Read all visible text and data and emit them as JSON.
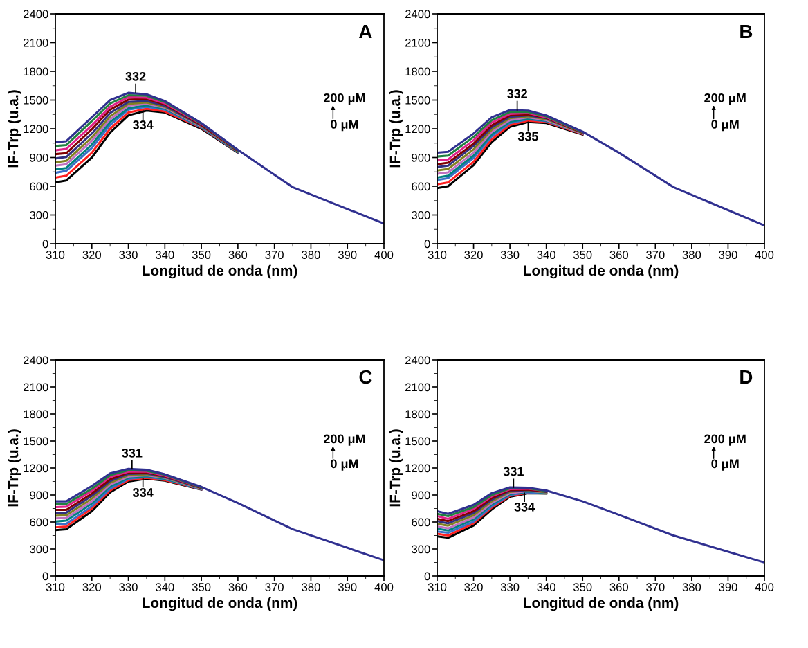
{
  "chart_data": [
    {
      "type": "line",
      "xlabel": "Longitud de onda (nm)",
      "ylabel": "IF-Trp (u.a.)",
      "xlim": [
        310,
        400
      ],
      "xticks": [
        310,
        320,
        330,
        340,
        350,
        360,
        370,
        380,
        390,
        400
      ],
      "ylim": [
        0,
        2400
      ],
      "yticks": [
        0,
        300,
        600,
        900,
        1200,
        1500,
        1800,
        2100,
        2400
      ],
      "grid": false,
      "legend": false,
      "marker": "none",
      "line_style": "solid",
      "x": [
        310,
        313,
        320,
        325,
        330,
        335,
        340,
        350,
        360,
        375,
        400
      ],
      "annotations": [
        {
          "text": "332",
          "x": 332,
          "y": 1575
        },
        {
          "text": "334",
          "x": 334,
          "y": 1390
        },
        "A",
        "200 μM",
        "0 μM"
      ],
      "series": [
        {
          "color": "#000000",
          "values": [
            640,
            660,
            900,
            1160,
            1340,
            1390,
            1370,
            1200,
            950,
            null,
            null
          ]
        },
        {
          "color": "#ff2020",
          "values": [
            690,
            710,
            950,
            1200,
            1370,
            1410,
            1380,
            1210,
            955,
            null,
            null
          ]
        },
        {
          "color": "#3b6fc8",
          "values": [
            740,
            760,
            1000,
            1240,
            1400,
            1430,
            1400,
            1215,
            955,
            null,
            null
          ]
        },
        {
          "color": "#008080",
          "values": [
            775,
            790,
            1035,
            1270,
            1415,
            1445,
            1410,
            1220,
            960,
            null,
            null
          ]
        },
        {
          "color": "#c070c0",
          "values": [
            815,
            830,
            1075,
            1300,
            1440,
            1460,
            1420,
            1225,
            965,
            null,
            null
          ]
        },
        {
          "color": "#808020",
          "values": [
            850,
            865,
            1110,
            1330,
            1460,
            1475,
            1430,
            1230,
            965,
            null,
            null
          ]
        },
        {
          "color": "#303080",
          "values": [
            890,
            905,
            1150,
            1365,
            1480,
            1490,
            1440,
            1235,
            970,
            null,
            null
          ]
        },
        {
          "color": "#800000",
          "values": [
            935,
            945,
            1195,
            1400,
            1505,
            1510,
            1455,
            1240,
            970,
            null,
            null
          ]
        },
        {
          "color": "#e0208a",
          "values": [
            975,
            990,
            1235,
            1430,
            1530,
            1525,
            1465,
            1250,
            975,
            null,
            null
          ]
        },
        {
          "color": "#208040",
          "values": [
            1020,
            1030,
            1280,
            1465,
            1550,
            1545,
            1480,
            1255,
            975,
            null,
            null
          ]
        },
        {
          "color": "#303090",
          "values": [
            1060,
            1070,
            1320,
            1500,
            1575,
            1560,
            1490,
            1260,
            980,
            590,
            210
          ]
        }
      ]
    },
    {
      "type": "line",
      "xlabel": "Longitud de onda (nm)",
      "ylabel": "IF-Trp (u.a.)",
      "xlim": [
        310,
        400
      ],
      "xticks": [
        310,
        320,
        330,
        340,
        350,
        360,
        370,
        380,
        390,
        400
      ],
      "ylim": [
        0,
        2400
      ],
      "yticks": [
        0,
        300,
        600,
        900,
        1200,
        1500,
        1800,
        2100,
        2400
      ],
      "grid": false,
      "legend": false,
      "marker": "none",
      "line_style": "solid",
      "x": [
        310,
        313,
        320,
        325,
        330,
        335,
        340,
        350,
        360,
        375,
        400
      ],
      "annotations": [
        {
          "text": "332",
          "x": 332,
          "y": 1395
        },
        {
          "text": "335",
          "x": 335,
          "y": 1270
        },
        "B",
        "200 μM",
        "0 μM"
      ],
      "series": [
        {
          "color": "#000000",
          "values": [
            580,
            600,
            820,
            1060,
            1220,
            1270,
            1260,
            1140,
            null,
            null,
            null
          ]
        },
        {
          "color": "#ff2020",
          "values": [
            620,
            640,
            855,
            1090,
            1240,
            1285,
            1270,
            1145,
            null,
            null,
            null
          ]
        },
        {
          "color": "#3b6fc8",
          "values": [
            665,
            685,
            895,
            1120,
            1260,
            1300,
            1280,
            1150,
            null,
            null,
            null
          ]
        },
        {
          "color": "#008080",
          "values": [
            690,
            710,
            920,
            1140,
            1275,
            1305,
            1285,
            1150,
            null,
            null,
            null
          ]
        },
        {
          "color": "#c070c0",
          "values": [
            730,
            745,
            950,
            1165,
            1290,
            1320,
            1290,
            1150,
            null,
            null,
            null
          ]
        },
        {
          "color": "#808020",
          "values": [
            765,
            780,
            985,
            1190,
            1310,
            1330,
            1300,
            1155,
            null,
            null,
            null
          ]
        },
        {
          "color": "#303080",
          "values": [
            800,
            815,
            1020,
            1215,
            1325,
            1340,
            1310,
            1160,
            null,
            null,
            null
          ]
        },
        {
          "color": "#800000",
          "values": [
            830,
            845,
            1045,
            1235,
            1340,
            1350,
            1315,
            1160,
            null,
            null,
            null
          ]
        },
        {
          "color": "#e0208a",
          "values": [
            870,
            880,
            1080,
            1265,
            1355,
            1365,
            1320,
            1165,
            null,
            null,
            null
          ]
        },
        {
          "color": "#208040",
          "values": [
            910,
            920,
            1115,
            1290,
            1375,
            1375,
            1330,
            1165,
            null,
            null,
            null
          ]
        },
        {
          "color": "#303090",
          "values": [
            950,
            960,
            1150,
            1320,
            1395,
            1390,
            1340,
            1170,
            950,
            590,
            190
          ]
        }
      ]
    },
    {
      "type": "line",
      "xlabel": "Longitud de onda (nm)",
      "ylabel": "IF-Trp (u.a.)",
      "xlim": [
        310,
        400
      ],
      "xticks": [
        310,
        320,
        330,
        340,
        350,
        360,
        370,
        380,
        390,
        400
      ],
      "ylim": [
        0,
        2400
      ],
      "yticks": [
        0,
        300,
        600,
        900,
        1200,
        1500,
        1800,
        2100,
        2400
      ],
      "grid": false,
      "legend": false,
      "marker": "none",
      "line_style": "solid",
      "x": [
        310,
        313,
        320,
        325,
        330,
        335,
        340,
        350,
        360,
        375,
        400
      ],
      "annotations": [
        {
          "text": "331",
          "x": 331,
          "y": 1190
        },
        {
          "text": "334",
          "x": 334,
          "y": 1080
        },
        "C",
        "200 μM",
        "0 μM"
      ],
      "series": [
        {
          "color": "#000000",
          "values": [
            510,
            520,
            720,
            930,
            1050,
            1080,
            1060,
            960,
            null,
            null,
            null
          ]
        },
        {
          "color": "#ff2020",
          "values": [
            540,
            550,
            750,
            950,
            1065,
            1090,
            1065,
            965,
            null,
            null,
            null
          ]
        },
        {
          "color": "#3b6fc8",
          "values": [
            575,
            580,
            775,
            970,
            1080,
            1100,
            1075,
            965,
            null,
            null,
            null
          ]
        },
        {
          "color": "#008080",
          "values": [
            605,
            615,
            805,
            995,
            1090,
            1110,
            1080,
            970,
            null,
            null,
            null
          ]
        },
        {
          "color": "#c070c0",
          "values": [
            640,
            645,
            830,
            1015,
            1105,
            1120,
            1090,
            970,
            null,
            null,
            null
          ]
        },
        {
          "color": "#808020",
          "values": [
            670,
            675,
            860,
            1035,
            1120,
            1130,
            1095,
            975,
            null,
            null,
            null
          ]
        },
        {
          "color": "#303080",
          "values": [
            700,
            705,
            890,
            1055,
            1135,
            1140,
            1100,
            980,
            null,
            null,
            null
          ]
        },
        {
          "color": "#800000",
          "values": [
            735,
            735,
            915,
            1075,
            1150,
            1150,
            1110,
            980,
            null,
            null,
            null
          ]
        },
        {
          "color": "#e0208a",
          "values": [
            765,
            770,
            945,
            1100,
            1160,
            1160,
            1115,
            985,
            null,
            null,
            null
          ]
        },
        {
          "color": "#208040",
          "values": [
            800,
            800,
            970,
            1120,
            1175,
            1170,
            1125,
            985,
            null,
            null,
            null
          ]
        },
        {
          "color": "#303090",
          "values": [
            830,
            830,
            1000,
            1140,
            1190,
            1180,
            1130,
            990,
            810,
            520,
            175
          ]
        }
      ]
    },
    {
      "type": "line",
      "xlabel": "Longitud de onda (nm)",
      "ylabel": "IF-Trp (u.a.)",
      "xlim": [
        310,
        400
      ],
      "xticks": [
        310,
        320,
        330,
        340,
        350,
        360,
        370,
        380,
        390,
        400
      ],
      "ylim": [
        0,
        2400
      ],
      "yticks": [
        0,
        300,
        600,
        900,
        1200,
        1500,
        1800,
        2100,
        2400
      ],
      "grid": false,
      "legend": false,
      "marker": "none",
      "line_style": "solid",
      "x": [
        310,
        313,
        320,
        325,
        330,
        335,
        340,
        350,
        360,
        375,
        400
      ],
      "annotations": [
        {
          "text": "331",
          "x": 331,
          "y": 985
        },
        {
          "text": "334",
          "x": 334,
          "y": 920
        },
        "D",
        "200 μM",
        "0 μM"
      ],
      "series": [
        {
          "color": "#000000",
          "values": [
            440,
            425,
            560,
            740,
            880,
            920,
            915,
            null,
            null,
            null,
            null
          ]
        },
        {
          "color": "#ff2020",
          "values": [
            470,
            450,
            585,
            760,
            890,
            925,
            920,
            null,
            null,
            null,
            null
          ]
        },
        {
          "color": "#3b6fc8",
          "values": [
            495,
            480,
            605,
            775,
            900,
            930,
            920,
            null,
            null,
            null,
            null
          ]
        },
        {
          "color": "#008080",
          "values": [
            525,
            505,
            630,
            795,
            910,
            940,
            925,
            null,
            null,
            null,
            null
          ]
        },
        {
          "color": "#c070c0",
          "values": [
            550,
            530,
            650,
            810,
            920,
            945,
            930,
            null,
            null,
            null,
            null
          ]
        },
        {
          "color": "#808020",
          "values": [
            580,
            560,
            675,
            830,
            935,
            950,
            930,
            null,
            null,
            null,
            null
          ]
        },
        {
          "color": "#303080",
          "values": [
            610,
            585,
            700,
            850,
            945,
            955,
            935,
            null,
            null,
            null,
            null
          ]
        },
        {
          "color": "#800000",
          "values": [
            635,
            610,
            720,
            865,
            955,
            960,
            940,
            null,
            null,
            null,
            null
          ]
        },
        {
          "color": "#e0208a",
          "values": [
            665,
            635,
            745,
            885,
            965,
            970,
            945,
            null,
            null,
            null,
            null
          ]
        },
        {
          "color": "#208040",
          "values": [
            690,
            665,
            765,
            900,
            975,
            975,
            945,
            null,
            null,
            null,
            null
          ]
        },
        {
          "color": "#303090",
          "values": [
            720,
            690,
            790,
            920,
            985,
            980,
            950,
            830,
            680,
            450,
            150
          ]
        }
      ]
    }
  ]
}
